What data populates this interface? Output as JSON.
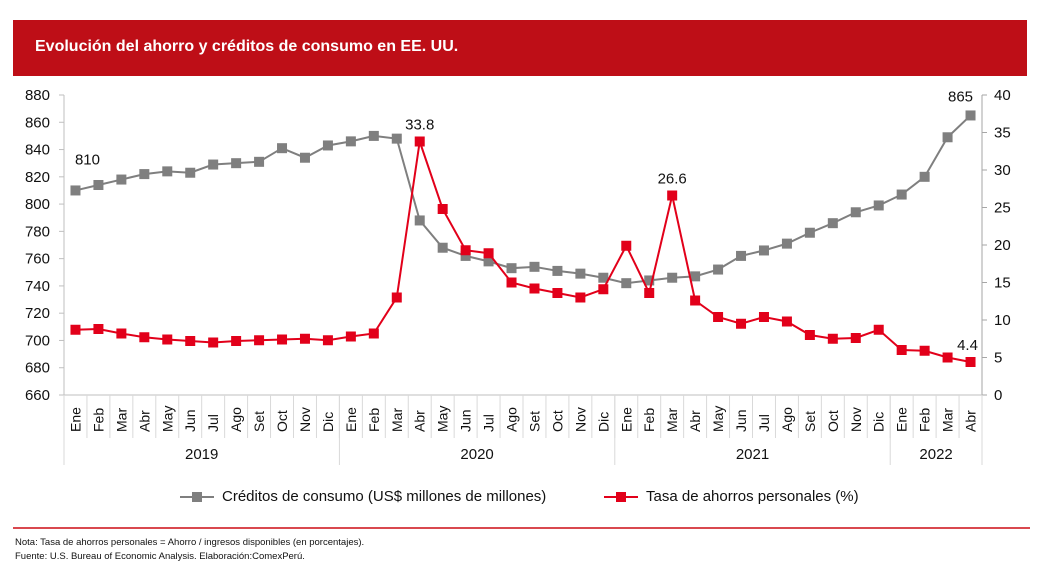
{
  "header": {
    "title": "Evolución del ahorro y créditos de consumo en EE. UU."
  },
  "colors": {
    "header_bg": "#BE0E17",
    "credit_series": "#7F7F7F",
    "savings_series": "#E2001A",
    "divider": "#D9484F"
  },
  "chart_data": {
    "type": "line",
    "title": "Evolución del ahorro y créditos de consumo en EE. UU.",
    "x": [
      "Ene",
      "Feb",
      "Mar",
      "Abr",
      "May",
      "Jun",
      "Jul",
      "Ago",
      "Set",
      "Oct",
      "Nov",
      "Dic",
      "Ene",
      "Feb",
      "Mar",
      "Abr",
      "May",
      "Jun",
      "Jul",
      "Ago",
      "Set",
      "Oct",
      "Nov",
      "Dic",
      "Ene",
      "Feb",
      "Mar",
      "Abr",
      "May",
      "Jun",
      "Jul",
      "Ago",
      "Set",
      "Oct",
      "Nov",
      "Dic",
      "Ene",
      "Feb",
      "Mar",
      "Abr"
    ],
    "year_groups": [
      {
        "label": "2019",
        "count": 12
      },
      {
        "label": "2020",
        "count": 12
      },
      {
        "label": "2021",
        "count": 12
      },
      {
        "label": "2022",
        "count": 4
      }
    ],
    "series": [
      {
        "name": "Créditos de consumo (US$ millones de millones)",
        "axis": "left",
        "color": "#7F7F7F",
        "values": [
          810,
          814,
          818,
          822,
          824,
          823,
          829,
          830,
          831,
          841,
          834,
          843,
          846,
          850,
          848,
          788,
          768,
          762,
          758,
          753,
          754,
          751,
          749,
          746,
          742,
          744,
          746,
          747,
          752,
          762,
          766,
          771,
          779,
          786,
          794,
          799,
          807,
          820,
          849,
          865
        ],
        "labels": [
          {
            "index": 0,
            "text": "810"
          },
          {
            "index": 39,
            "text": "865"
          }
        ]
      },
      {
        "name": "Tasa de ahorros personales (%)",
        "axis": "right",
        "color": "#E2001A",
        "values": [
          8.7,
          8.8,
          8.2,
          7.7,
          7.4,
          7.2,
          7.0,
          7.2,
          7.3,
          7.4,
          7.5,
          7.3,
          7.8,
          8.2,
          13.0,
          33.8,
          24.8,
          19.3,
          18.9,
          15.0,
          14.2,
          13.6,
          13.0,
          14.1,
          19.9,
          13.6,
          26.6,
          12.6,
          10.4,
          9.5,
          10.4,
          9.8,
          8.0,
          7.5,
          7.6,
          8.7,
          6.0,
          5.9,
          5.0,
          4.4
        ],
        "labels": [
          {
            "index": 15,
            "text": "33.8"
          },
          {
            "index": 26,
            "text": "26.6"
          },
          {
            "index": 39,
            "text": "4.4"
          }
        ]
      }
    ],
    "left_axis": {
      "ylim": [
        660,
        880
      ],
      "ticks": [
        660,
        680,
        700,
        720,
        740,
        760,
        780,
        800,
        820,
        840,
        860,
        880
      ]
    },
    "right_axis": {
      "ylim": [
        0,
        40
      ],
      "ticks": [
        0,
        5,
        10,
        15,
        20,
        25,
        30,
        35,
        40
      ]
    },
    "xlabel": "",
    "ylabel": "",
    "grid": false,
    "legend_position": "bottom"
  },
  "legend": {
    "items": [
      {
        "label": "Créditos de consumo (US$ millones de millones)"
      },
      {
        "label": "Tasa de ahorros personales (%)"
      }
    ]
  },
  "footer": {
    "note": "Nota: Tasa de ahorros personales = Ahorro / ingresos disponibles (en porcentajes).",
    "source": "Fuente: U.S. Bureau of Economic Analysis. Elaboración:ComexPerú."
  }
}
